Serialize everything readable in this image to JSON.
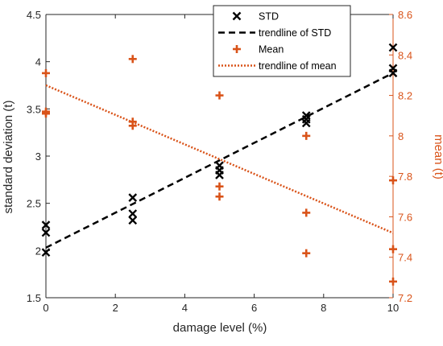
{
  "chart_data": {
    "type": "scatter",
    "xlabel": "damage level (%)",
    "ylabel_left": "standard deviation (t)",
    "ylabel_right": "mean (t)",
    "xlim": [
      0,
      10
    ],
    "ylim_left": [
      1.5,
      4.5
    ],
    "ylim_right": [
      7.2,
      8.6
    ],
    "x_ticks": [
      0,
      2,
      4,
      6,
      8,
      10
    ],
    "y_ticks_left": [
      1.5,
      2,
      2.5,
      3,
      3.5,
      4,
      4.5
    ],
    "y_ticks_right": [
      7.2,
      7.4,
      7.6,
      7.8,
      8.0,
      8.2,
      8.4,
      8.6
    ],
    "y_tick_labels_left": [
      "1.5",
      "2",
      "2.5",
      "3",
      "3.5",
      "4",
      "4.5"
    ],
    "y_tick_labels_right": [
      "7.2",
      "7.4",
      "7.6",
      "7.8",
      "8",
      "8.2",
      "8.4",
      "8.6"
    ],
    "grid": false,
    "legend_position": "top-right",
    "colors": {
      "std": "#000000",
      "mean": "#d95319",
      "axis_right": "#d95319"
    },
    "series": [
      {
        "name": "STD",
        "axis": "left",
        "marker": "x",
        "color": "#000000",
        "points": [
          [
            0,
            1.98
          ],
          [
            0,
            2.19
          ],
          [
            0,
            2.27
          ],
          [
            2.5,
            2.32
          ],
          [
            2.5,
            2.39
          ],
          [
            2.5,
            2.56
          ],
          [
            5,
            2.8
          ],
          [
            5,
            2.85
          ],
          [
            5,
            2.9
          ],
          [
            7.5,
            3.35
          ],
          [
            7.5,
            3.39
          ],
          [
            7.5,
            3.43
          ],
          [
            10,
            3.88
          ],
          [
            10,
            3.93
          ],
          [
            10,
            4.15
          ]
        ]
      },
      {
        "name": "Mean",
        "axis": "right",
        "marker": "+",
        "color": "#d95319",
        "points": [
          [
            0,
            8.11
          ],
          [
            0,
            8.12
          ],
          [
            0,
            8.31
          ],
          [
            2.5,
            8.05
          ],
          [
            2.5,
            8.07
          ],
          [
            2.5,
            8.38
          ],
          [
            5,
            7.7
          ],
          [
            5,
            7.75
          ],
          [
            5,
            8.2
          ],
          [
            7.5,
            7.42
          ],
          [
            7.5,
            7.62
          ],
          [
            7.5,
            8.0
          ],
          [
            10,
            7.28
          ],
          [
            10,
            7.44
          ],
          [
            10,
            7.78
          ]
        ]
      }
    ],
    "trendlines": [
      {
        "name": "trendline of STD",
        "axis": "left",
        "style": "dashed",
        "color": "#000000",
        "x": [
          0,
          10
        ],
        "y": [
          2.03,
          3.88
        ]
      },
      {
        "name": "trendline of mean",
        "axis": "right",
        "style": "dotted",
        "color": "#d95319",
        "x": [
          0,
          10
        ],
        "y": [
          8.25,
          7.52
        ]
      }
    ]
  }
}
